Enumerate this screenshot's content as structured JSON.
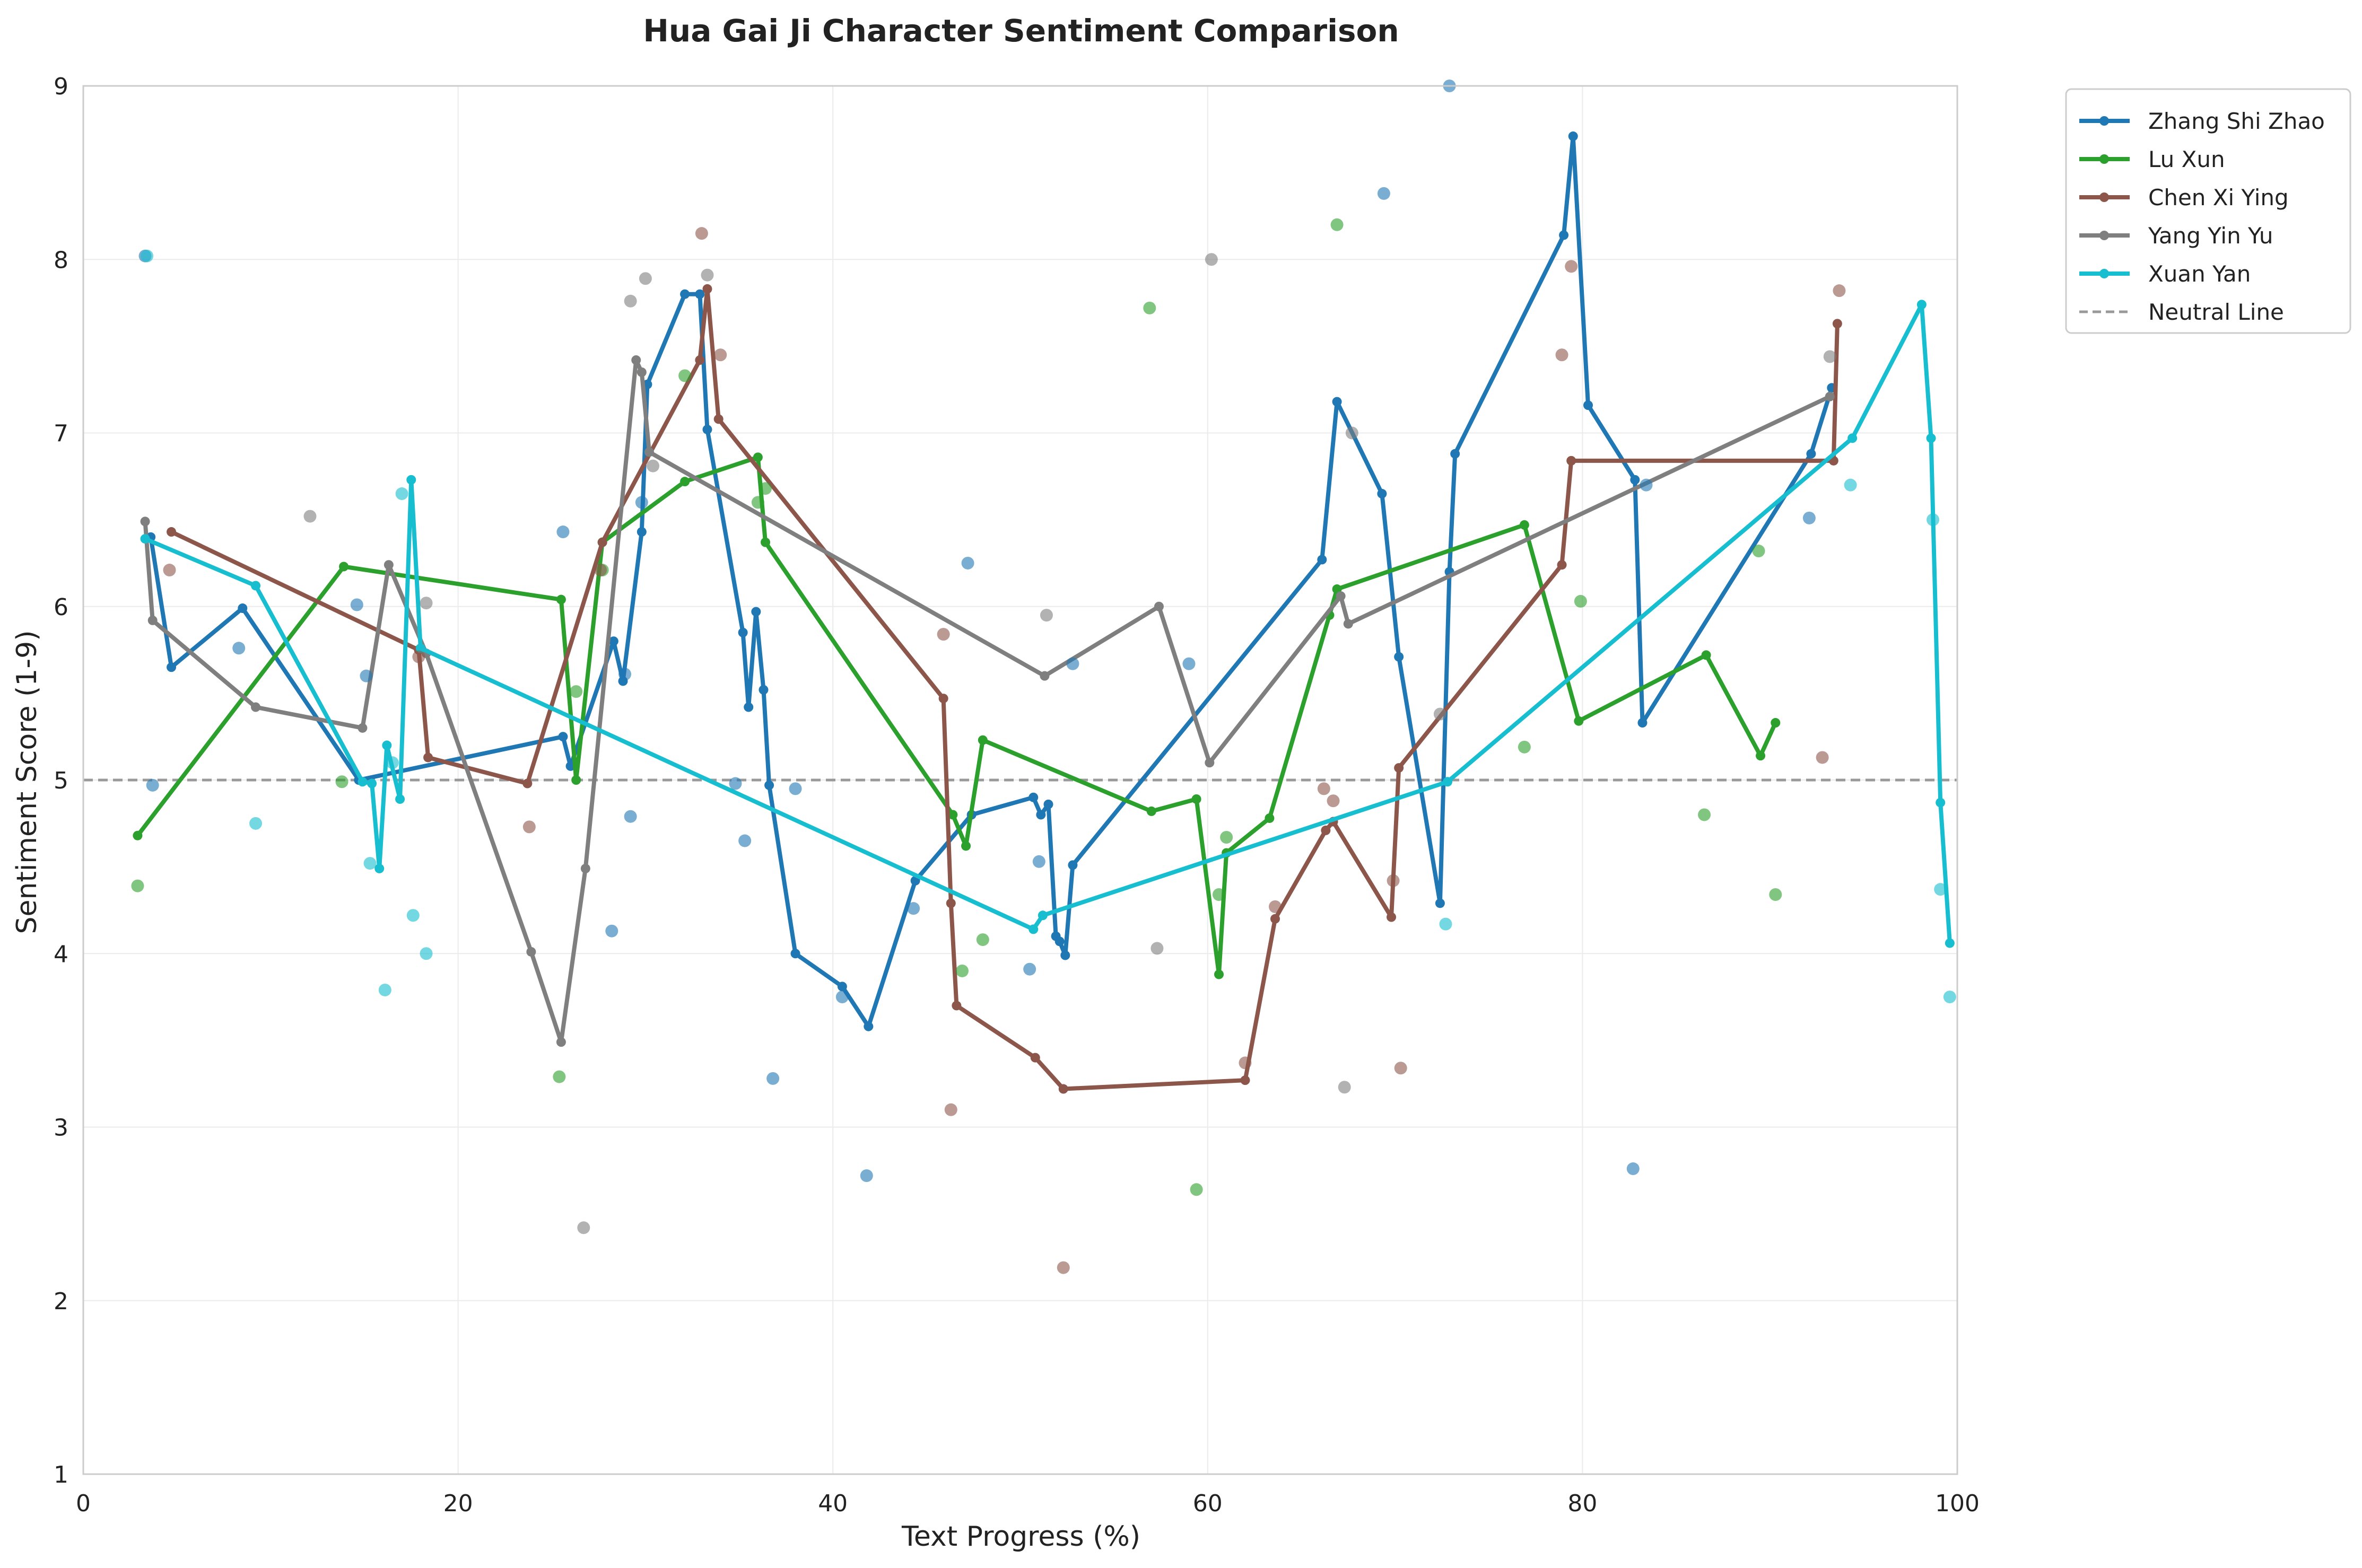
{
  "chart_data": {
    "type": "line",
    "title": "Hua Gai Ji Character Sentiment Comparison",
    "xlabel": "Text Progress (%)",
    "ylabel": "Sentiment Score (1-9)",
    "xlim": [
      0,
      100
    ],
    "ylim": [
      1,
      9
    ],
    "xticks": [
      0,
      20,
      40,
      60,
      80,
      100
    ],
    "yticks": [
      1,
      2,
      3,
      4,
      5,
      6,
      7,
      8,
      9
    ],
    "grid": true,
    "legend_position": "outside-top-right",
    "reference_line": {
      "name": "Neutral Line",
      "y": 5,
      "color": "#999999",
      "style": "dashed"
    },
    "series": [
      {
        "name": "Zhang Shi Zhao",
        "color": "#1f77b4",
        "x": [
          3.6,
          4.7,
          8.5,
          14.7,
          25.6,
          26.0,
          28.3,
          28.8,
          29.8,
          30.1,
          32.1,
          32.9,
          33.3,
          35.2,
          35.5,
          35.9,
          36.3,
          36.6,
          38.0,
          40.5,
          41.9,
          44.4,
          47.4,
          50.7,
          51.1,
          51.5,
          51.9,
          52.1,
          52.4,
          52.8,
          66.1,
          66.9,
          69.3,
          70.2,
          72.4,
          72.9,
          73.2,
          79.0,
          79.5,
          80.3,
          82.8,
          83.2,
          92.2,
          93.3
        ],
        "y": [
          6.4,
          5.65,
          5.99,
          5.0,
          5.25,
          5.08,
          5.8,
          5.57,
          6.43,
          7.28,
          7.8,
          7.8,
          7.02,
          5.85,
          5.42,
          5.97,
          5.52,
          4.97,
          4.0,
          3.81,
          3.58,
          4.42,
          4.8,
          4.9,
          4.8,
          4.86,
          4.1,
          4.07,
          3.99,
          4.51,
          6.27,
          7.18,
          6.65,
          5.71,
          4.29,
          6.2,
          6.88,
          8.14,
          8.71,
          7.16,
          6.73,
          5.33,
          6.88,
          7.26
        ]
      },
      {
        "name": "Lu Xun",
        "color": "#2ca02c",
        "x": [
          2.9,
          13.9,
          25.5,
          26.3,
          27.7,
          32.1,
          36.0,
          36.4,
          46.4,
          47.1,
          48.0,
          57.0,
          59.4,
          60.6,
          61.0,
          63.3,
          66.5,
          66.9,
          76.9,
          79.8,
          86.6,
          89.5,
          90.3
        ],
        "y": [
          4.68,
          6.23,
          6.04,
          5.0,
          6.37,
          6.72,
          6.86,
          6.37,
          4.8,
          4.62,
          5.23,
          4.82,
          4.89,
          3.88,
          4.58,
          4.78,
          5.95,
          6.1,
          6.47,
          5.34,
          5.72,
          5.14,
          5.33
        ]
      },
      {
        "name": "Chen Xi Ying",
        "color": "#8c564b",
        "x": [
          4.7,
          17.9,
          18.4,
          23.7,
          27.7,
          32.9,
          33.3,
          33.9,
          45.9,
          46.3,
          46.6,
          50.8,
          52.3,
          62.0,
          63.6,
          66.3,
          66.7,
          69.8,
          70.2,
          78.9,
          79.4,
          93.4,
          93.6
        ],
        "y": [
          6.43,
          5.75,
          5.13,
          4.98,
          6.37,
          7.42,
          7.83,
          7.08,
          5.47,
          4.29,
          3.7,
          3.4,
          3.22,
          3.27,
          4.2,
          4.71,
          4.76,
          4.21,
          5.07,
          6.24,
          6.84,
          6.84,
          7.63
        ]
      },
      {
        "name": "Yang Yin Yu",
        "color": "#7f7f7f",
        "x": [
          3.3,
          3.7,
          9.2,
          14.9,
          16.3,
          18.3,
          23.9,
          25.5,
          26.8,
          29.5,
          29.8,
          30.2,
          51.3,
          57.4,
          60.1,
          67.1,
          67.5,
          93.2
        ],
        "y": [
          6.49,
          5.92,
          5.42,
          5.3,
          6.24,
          5.73,
          4.01,
          3.49,
          4.49,
          7.42,
          7.35,
          6.89,
          5.6,
          6.0,
          5.1,
          6.06,
          5.9,
          7.21
        ]
      },
      {
        "name": "Xuan Yan",
        "color": "#17becf",
        "x": [
          3.3,
          9.2,
          14.9,
          15.4,
          15.8,
          16.2,
          16.9,
          17.5,
          18.0,
          50.7,
          51.2,
          72.8,
          94.4,
          98.1,
          98.6,
          99.1,
          99.6
        ],
        "y": [
          6.39,
          6.12,
          4.99,
          4.98,
          4.49,
          5.2,
          4.89,
          6.73,
          5.76,
          4.14,
          4.22,
          4.99,
          6.97,
          7.74,
          6.97,
          4.87,
          4.06
        ]
      }
    ],
    "scatter_points": [
      {
        "color": "#1f77b4",
        "points": [
          [
            3.3,
            8.02
          ],
          [
            3.7,
            4.97
          ],
          [
            8.3,
            5.76
          ],
          [
            14.6,
            6.01
          ],
          [
            15.1,
            5.6
          ],
          [
            25.6,
            6.43
          ],
          [
            28.2,
            4.13
          ],
          [
            28.9,
            5.61
          ],
          [
            29.2,
            4.79
          ],
          [
            29.8,
            6.6
          ],
          [
            34.8,
            4.98
          ],
          [
            35.3,
            4.65
          ],
          [
            36.8,
            3.28
          ],
          [
            38.0,
            4.95
          ],
          [
            40.5,
            3.75
          ],
          [
            41.8,
            2.72
          ],
          [
            44.3,
            4.26
          ],
          [
            47.2,
            6.25
          ],
          [
            50.5,
            3.91
          ],
          [
            51.0,
            4.53
          ],
          [
            52.8,
            5.67
          ],
          [
            59.0,
            5.67
          ],
          [
            69.4,
            8.38
          ],
          [
            72.9,
            9.0
          ],
          [
            82.7,
            2.76
          ],
          [
            83.4,
            6.7
          ],
          [
            92.1,
            6.51
          ]
        ]
      },
      {
        "color": "#2ca02c",
        "points": [
          [
            2.9,
            4.39
          ],
          [
            13.8,
            4.99
          ],
          [
            25.4,
            3.29
          ],
          [
            26.3,
            5.51
          ],
          [
            27.7,
            6.21
          ],
          [
            32.1,
            7.33
          ],
          [
            36.0,
            6.6
          ],
          [
            36.4,
            6.68
          ],
          [
            46.9,
            3.9
          ],
          [
            48.0,
            4.08
          ],
          [
            56.9,
            7.72
          ],
          [
            59.4,
            2.64
          ],
          [
            60.6,
            4.34
          ],
          [
            61.0,
            4.67
          ],
          [
            66.9,
            8.2
          ],
          [
            76.9,
            5.19
          ],
          [
            79.9,
            6.03
          ],
          [
            86.5,
            4.8
          ],
          [
            89.4,
            6.32
          ],
          [
            90.3,
            4.34
          ]
        ]
      },
      {
        "color": "#8c564b",
        "points": [
          [
            4.6,
            6.21
          ],
          [
            17.9,
            5.71
          ],
          [
            23.8,
            4.73
          ],
          [
            27.6,
            6.21
          ],
          [
            33.0,
            8.15
          ],
          [
            34.0,
            7.45
          ],
          [
            45.9,
            5.84
          ],
          [
            46.3,
            3.1
          ],
          [
            52.3,
            2.19
          ],
          [
            62.0,
            3.37
          ],
          [
            63.6,
            4.27
          ],
          [
            66.2,
            4.95
          ],
          [
            66.7,
            4.88
          ],
          [
            69.9,
            4.42
          ],
          [
            70.3,
            3.34
          ],
          [
            78.9,
            7.45
          ],
          [
            79.4,
            7.96
          ],
          [
            92.8,
            5.13
          ],
          [
            93.7,
            7.82
          ]
        ]
      },
      {
        "color": "#7f7f7f",
        "points": [
          [
            12.1,
            6.52
          ],
          [
            18.3,
            6.02
          ],
          [
            26.7,
            2.42
          ],
          [
            29.2,
            7.76
          ],
          [
            30.0,
            7.89
          ],
          [
            30.4,
            6.81
          ],
          [
            33.3,
            7.91
          ],
          [
            51.4,
            5.95
          ],
          [
            57.3,
            4.03
          ],
          [
            60.2,
            8.0
          ],
          [
            67.3,
            3.23
          ],
          [
            67.7,
            7.0
          ],
          [
            72.4,
            5.38
          ],
          [
            93.2,
            7.44
          ]
        ]
      },
      {
        "color": "#17becf",
        "points": [
          [
            3.4,
            8.02
          ],
          [
            9.2,
            4.75
          ],
          [
            15.3,
            4.52
          ],
          [
            16.1,
            3.79
          ],
          [
            16.5,
            5.1
          ],
          [
            17.0,
            6.65
          ],
          [
            17.6,
            4.22
          ],
          [
            18.3,
            4.0
          ],
          [
            72.7,
            4.17
          ],
          [
            94.3,
            6.7
          ],
          [
            98.7,
            6.5
          ],
          [
            99.1,
            4.37
          ],
          [
            99.6,
            3.75
          ]
        ]
      }
    ]
  }
}
